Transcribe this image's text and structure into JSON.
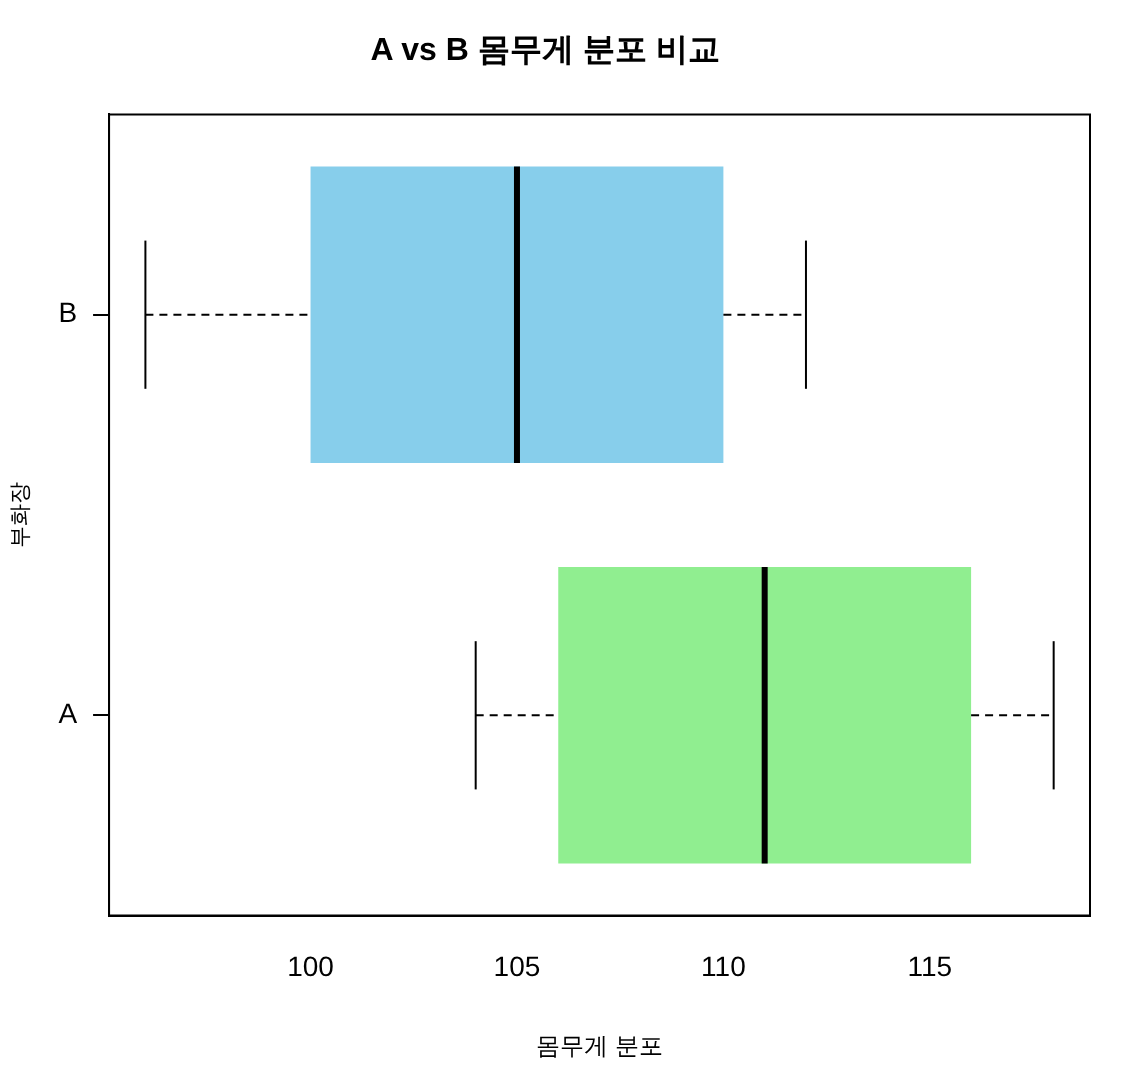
{
  "chart_data": {
    "type": "box",
    "title": "A vs B 몸무게 분포 비교",
    "xlabel": "몸무게 분포",
    "ylabel": "부화장",
    "orientation": "horizontal",
    "categories": [
      "B",
      "A"
    ],
    "colors": [
      "#87ceeb",
      "#90ee90"
    ],
    "boxes": [
      {
        "low": 96,
        "q1": 100,
        "median": 105,
        "q3": 110,
        "high": 112
      },
      {
        "low": 104,
        "q1": 106,
        "median": 111,
        "q3": 116,
        "high": 118
      }
    ],
    "xlim": [
      95.12,
      118.88
    ],
    "xticks": [
      100,
      105,
      110,
      115
    ],
    "grid": false,
    "legend": false
  }
}
